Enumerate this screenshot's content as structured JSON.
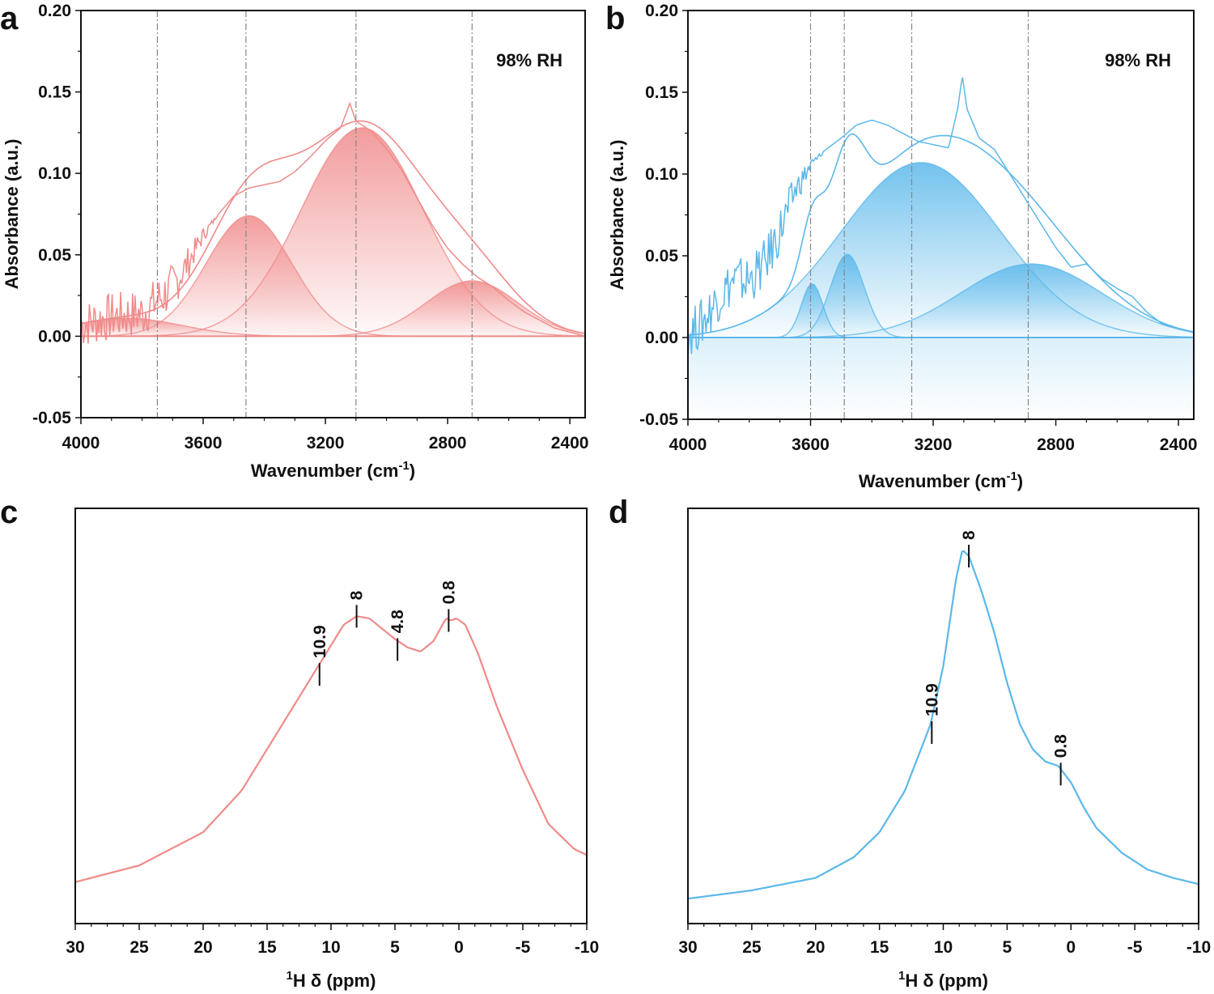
{
  "chart_data": [
    {
      "id": "a",
      "panel_label": "a",
      "type": "line",
      "xlabel": "Wavenumber (cm",
      "xlabel_sup": "-1",
      "xlabel_end": ")",
      "ylabel": "Absorbance (a.u.)",
      "xlim": [
        4000,
        2350
      ],
      "ylim": [
        -0.05,
        0.2
      ],
      "x_ticks": [
        4000,
        3600,
        3200,
        2800,
        2400
      ],
      "y_ticks": [
        -0.05,
        0.0,
        0.05,
        0.1,
        0.15,
        0.2
      ],
      "y_tick_labels": [
        "-0.05",
        "0.00",
        "0.05",
        "0.10",
        "0.15",
        "0.20"
      ],
      "annotation": "98% RH",
      "color": "#f08a8a",
      "reference_lines": [
        3750,
        3460,
        3100,
        2720
      ],
      "fitted_peaks": [
        {
          "center": 3850,
          "height": 0.011,
          "width": 180
        },
        {
          "center": 3450,
          "height": 0.074,
          "width": 140
        },
        {
          "center": 3080,
          "height": 0.128,
          "width": 200
        },
        {
          "center": 2720,
          "height": 0.034,
          "width": 150
        }
      ],
      "measured": [
        [
          4000,
          0.007
        ],
        [
          3900,
          0.012
        ],
        [
          3800,
          0.014
        ],
        [
          3750,
          0.022
        ],
        [
          3700,
          0.03
        ],
        [
          3650,
          0.045
        ],
        [
          3600,
          0.062
        ],
        [
          3550,
          0.075
        ],
        [
          3500,
          0.086
        ],
        [
          3450,
          0.091
        ],
        [
          3400,
          0.093
        ],
        [
          3350,
          0.095
        ],
        [
          3300,
          0.101
        ],
        [
          3250,
          0.11
        ],
        [
          3200,
          0.12
        ],
        [
          3150,
          0.128
        ],
        [
          3120,
          0.143
        ],
        [
          3100,
          0.132
        ],
        [
          3050,
          0.126
        ],
        [
          3000,
          0.115
        ],
        [
          2950,
          0.102
        ],
        [
          2900,
          0.085
        ],
        [
          2850,
          0.068
        ],
        [
          2800,
          0.054
        ],
        [
          2750,
          0.044
        ],
        [
          2700,
          0.036
        ],
        [
          2650,
          0.03
        ],
        [
          2600,
          0.022
        ],
        [
          2550,
          0.015
        ],
        [
          2500,
          0.01
        ],
        [
          2450,
          0.005
        ],
        [
          2350,
          0.0
        ]
      ]
    },
    {
      "id": "b",
      "panel_label": "b",
      "type": "line",
      "xlabel": "Wavenumber (cm",
      "xlabel_sup": "-1",
      "xlabel_end": ")",
      "ylabel": "Absorbance (a.u.)",
      "xlim": [
        4000,
        2350
      ],
      "ylim": [
        -0.05,
        0.2
      ],
      "x_ticks": [
        4000,
        3600,
        3200,
        2800,
        2400
      ],
      "y_ticks": [
        -0.05,
        0.0,
        0.05,
        0.1,
        0.15,
        0.2
      ],
      "y_tick_labels": [
        "-0.05",
        "0.00",
        "0.05",
        "0.10",
        "0.15",
        "0.20"
      ],
      "annotation": "98% RH",
      "color": "#5bb8ea",
      "reference_lines": [
        3600,
        3490,
        3270,
        2890
      ],
      "fitted_peaks": [
        {
          "center": 3595,
          "height": 0.033,
          "width": 35
        },
        {
          "center": 3480,
          "height": 0.051,
          "width": 55
        },
        {
          "center": 3240,
          "height": 0.107,
          "width": 260
        },
        {
          "center": 2880,
          "height": 0.045,
          "width": 230
        }
      ],
      "measured": [
        [
          4000,
          0.002
        ],
        [
          3950,
          0.01
        ],
        [
          3900,
          0.025
        ],
        [
          3850,
          0.035
        ],
        [
          3800,
          0.035
        ],
        [
          3750,
          0.045
        ],
        [
          3700,
          0.065
        ],
        [
          3650,
          0.09
        ],
        [
          3600,
          0.105
        ],
        [
          3550,
          0.115
        ],
        [
          3500,
          0.122
        ],
        [
          3450,
          0.13
        ],
        [
          3400,
          0.133
        ],
        [
          3350,
          0.13
        ],
        [
          3300,
          0.125
        ],
        [
          3250,
          0.12
        ],
        [
          3200,
          0.118
        ],
        [
          3150,
          0.116
        ],
        [
          3120,
          0.14
        ],
        [
          3105,
          0.16
        ],
        [
          3090,
          0.14
        ],
        [
          3050,
          0.122
        ],
        [
          3000,
          0.115
        ],
        [
          2950,
          0.1
        ],
        [
          2900,
          0.085
        ],
        [
          2850,
          0.07
        ],
        [
          2800,
          0.055
        ],
        [
          2750,
          0.043
        ],
        [
          2700,
          0.045
        ],
        [
          2650,
          0.036
        ],
        [
          2600,
          0.03
        ],
        [
          2550,
          0.025
        ],
        [
          2500,
          0.015
        ],
        [
          2450,
          0.008
        ],
        [
          2350,
          0.003
        ]
      ]
    },
    {
      "id": "c",
      "panel_label": "c",
      "type": "line",
      "xlabel_sup": "1",
      "xlabel": "H δ  (ppm)",
      "xlim": [
        30,
        -10
      ],
      "ylim": [
        0,
        1
      ],
      "x_ticks": [
        30,
        25,
        20,
        15,
        10,
        5,
        0,
        -5,
        -10
      ],
      "color": "#f08a8a",
      "peak_labels": [
        {
          "x": 10.9,
          "y": 0.6,
          "text": "10.9"
        },
        {
          "x": 8,
          "y": 0.74,
          "text": "8"
        },
        {
          "x": 4.8,
          "y": 0.66,
          "text": "4.8"
        },
        {
          "x": 0.8,
          "y": 0.73,
          "text": "0.8"
        }
      ],
      "spectrum": [
        [
          30,
          0.1
        ],
        [
          25,
          0.14
        ],
        [
          20,
          0.22
        ],
        [
          17,
          0.32
        ],
        [
          15,
          0.42
        ],
        [
          13,
          0.52
        ],
        [
          11,
          0.62
        ],
        [
          10,
          0.67
        ],
        [
          9,
          0.72
        ],
        [
          8,
          0.74
        ],
        [
          7,
          0.735
        ],
        [
          6,
          0.71
        ],
        [
          5,
          0.685
        ],
        [
          4,
          0.665
        ],
        [
          3,
          0.655
        ],
        [
          2,
          0.68
        ],
        [
          1,
          0.735
        ],
        [
          0.6,
          0.73
        ],
        [
          0.2,
          0.735
        ],
        [
          -0.5,
          0.72
        ],
        [
          -1.5,
          0.65
        ],
        [
          -3,
          0.52
        ],
        [
          -5,
          0.37
        ],
        [
          -7,
          0.24
        ],
        [
          -9,
          0.18
        ],
        [
          -10,
          0.165
        ]
      ]
    },
    {
      "id": "d",
      "panel_label": "d",
      "type": "line",
      "xlabel_sup": "1",
      "xlabel": "H δ  (ppm)",
      "xlim": [
        30,
        -10
      ],
      "ylim": [
        0,
        1
      ],
      "x_ticks": [
        30,
        25,
        20,
        15,
        10,
        5,
        0,
        -5,
        -10
      ],
      "color": "#5bb8ea",
      "peak_labels": [
        {
          "x": 10.9,
          "y": 0.46,
          "text": "10.9"
        },
        {
          "x": 8,
          "y": 0.885,
          "text": "8"
        },
        {
          "x": 0.8,
          "y": 0.36,
          "text": "0.8"
        }
      ],
      "spectrum": [
        [
          30,
          0.06
        ],
        [
          25,
          0.08
        ],
        [
          20,
          0.11
        ],
        [
          17,
          0.16
        ],
        [
          15,
          0.22
        ],
        [
          13,
          0.32
        ],
        [
          12,
          0.4
        ],
        [
          11,
          0.48
        ],
        [
          10,
          0.62
        ],
        [
          9,
          0.83
        ],
        [
          8.5,
          0.9
        ],
        [
          8,
          0.885
        ],
        [
          7,
          0.8
        ],
        [
          6,
          0.7
        ],
        [
          5,
          0.58
        ],
        [
          4,
          0.48
        ],
        [
          3,
          0.42
        ],
        [
          2,
          0.39
        ],
        [
          1,
          0.38
        ],
        [
          0,
          0.34
        ],
        [
          -1,
          0.28
        ],
        [
          -2,
          0.23
        ],
        [
          -4,
          0.17
        ],
        [
          -6,
          0.13
        ],
        [
          -8,
          0.11
        ],
        [
          -10,
          0.095
        ]
      ]
    }
  ]
}
